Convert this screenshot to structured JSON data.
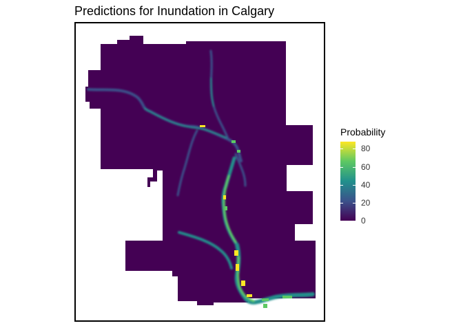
{
  "chart_data": {
    "type": "heatmap",
    "title": "Predictions for Inundation in Calgary",
    "legend": {
      "title": "Probability",
      "ticks": [
        0,
        20,
        40,
        60,
        80
      ],
      "range": [
        0,
        88
      ],
      "placement": "right"
    },
    "colors": {
      "low": "#440154",
      "mid_low": "#3b528b",
      "mid": "#21908c",
      "mid_high": "#5dc863",
      "high": "#fde725"
    }
  }
}
